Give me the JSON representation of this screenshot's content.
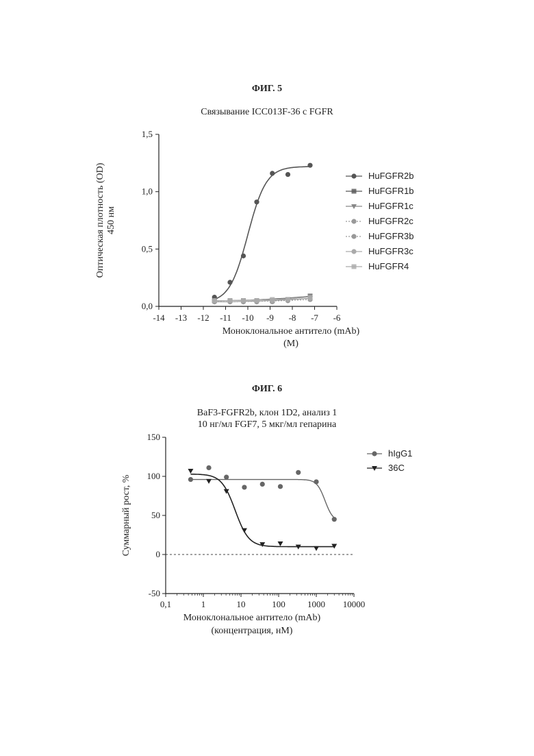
{
  "figure5": {
    "label": "ФИГ. 5",
    "title": "Связывание ICC013F-36 с FGFR",
    "ylabel_lines": [
      "Оптическая плотность (OD)",
      "450 нм"
    ],
    "xlabel_lines": [
      "Моноклональное антитело (mAb)",
      "(M)"
    ]
  },
  "figure6": {
    "label": "ФИГ. 6",
    "title_lines": [
      "BaF3-FGFR2b, клон 1D2, анализ 1",
      "10 нг/мл FGF7, 5 мкг/мл гепарина"
    ],
    "ylabel": "Суммарный рост, %",
    "xlabel_lines": [
      "Моноклональное антитело (mAb)",
      "(концентрация, нМ)"
    ]
  },
  "chart_data": [
    {
      "type": "scatter",
      "title": "Связывание ICC013F-36 с FGFR",
      "xlabel": "Моноклональное антитело (mAb) (M)",
      "ylabel": "Оптическая плотность (OD) 450 нм",
      "xlim": [
        -14,
        -6
      ],
      "ylim": [
        0,
        1.5
      ],
      "x_ticks": [
        "-14",
        "-13",
        "-12",
        "-11",
        "-10",
        "-9",
        "-8",
        "-7",
        "-6"
      ],
      "y_ticks": [
        "0,0",
        "0,5",
        "1,0",
        "1,5"
      ],
      "legend_position": "right",
      "fit_curves": true,
      "series": [
        {
          "name": "HuFGFR2b",
          "color": "#555555",
          "x": [
            -11.5,
            -10.8,
            -10.2,
            -9.6,
            -8.9,
            -8.2,
            -7.2
          ],
          "y": [
            0.08,
            0.21,
            0.44,
            0.91,
            1.16,
            1.15,
            1.23
          ]
        },
        {
          "name": "HuFGFR1b",
          "color": "#555555",
          "x": [
            -11.5,
            -10.8,
            -10.2,
            -9.6,
            -8.9,
            -8.2,
            -7.2
          ],
          "y": [
            0.05,
            0.05,
            0.05,
            0.05,
            0.05,
            0.06,
            0.09
          ]
        },
        {
          "name": "HuFGFR1c",
          "color": "#888888",
          "x": [
            -11.5,
            -10.8,
            -10.2,
            -9.6,
            -8.9,
            -8.2,
            -7.2
          ],
          "y": [
            0.04,
            0.04,
            0.04,
            0.04,
            0.05,
            0.05,
            0.07
          ]
        },
        {
          "name": "HuFGFR2c",
          "color": "#999999",
          "x": [
            -11.5,
            -10.8,
            -10.2,
            -9.6,
            -8.9,
            -8.2,
            -7.2
          ],
          "y": [
            0.04,
            0.04,
            0.04,
            0.04,
            0.04,
            0.05,
            0.06
          ]
        },
        {
          "name": "HuFGFR3b",
          "color": "#999999",
          "x": [
            -11.5,
            -10.8,
            -10.2,
            -9.6,
            -8.9,
            -8.2,
            -7.2
          ],
          "y": [
            0.04,
            0.04,
            0.04,
            0.04,
            0.05,
            0.05,
            0.06
          ]
        },
        {
          "name": "HuFGFR3c",
          "color": "#aaaaaa",
          "x": [
            -11.5,
            -10.8,
            -10.2,
            -9.6,
            -8.9,
            -8.2,
            -7.2
          ],
          "y": [
            0.05,
            0.05,
            0.05,
            0.05,
            0.05,
            0.06,
            0.07
          ]
        },
        {
          "name": "HuFGFR4",
          "color": "#aaaaaa",
          "x": [
            -11.5,
            -10.8,
            -10.2,
            -9.6,
            -8.9,
            -8.2,
            -7.2
          ],
          "y": [
            0.05,
            0.05,
            0.05,
            0.05,
            0.06,
            0.06,
            0.08
          ]
        }
      ]
    },
    {
      "type": "scatter",
      "title": "BaF3-FGFR2b, клон 1D2, анализ 1 / 10 нг/мл FGF7, 5 мкг/мл гепарина",
      "xlabel": "Моноклональное антитело (mAb) (концентрация, нМ)",
      "ylabel": "Суммарный рост, %",
      "xscale": "log",
      "xlim": [
        0.1,
        10000
      ],
      "ylim": [
        -50,
        150
      ],
      "x_ticks": [
        "0,1",
        "1",
        "10",
        "100",
        "1000",
        "10000"
      ],
      "y_ticks": [
        "-50",
        "0",
        "50",
        "100",
        "150"
      ],
      "legend_position": "top-right",
      "reference_line_y": 0,
      "fit_curves": true,
      "series": [
        {
          "name": "hIgG1",
          "color": "#666666",
          "marker": "circle",
          "x": [
            0.46,
            1.4,
            4.1,
            12.3,
            37,
            111,
            333,
            1000,
            3000
          ],
          "y": [
            96,
            111,
            99,
            86,
            90,
            87,
            105,
            93,
            45
          ]
        },
        {
          "name": "36C",
          "color": "#222222",
          "marker": "triangle-down",
          "x": [
            0.46,
            1.4,
            4.1,
            12.3,
            37,
            111,
            333,
            1000,
            3000
          ],
          "y": [
            107,
            94,
            81,
            31,
            13,
            14,
            10,
            8,
            11
          ]
        }
      ]
    }
  ]
}
